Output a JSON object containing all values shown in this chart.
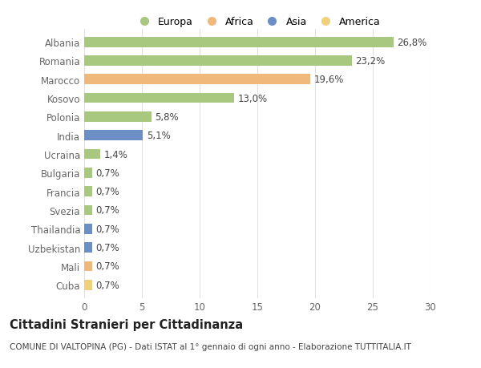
{
  "categories": [
    "Albania",
    "Romania",
    "Marocco",
    "Kosovo",
    "Polonia",
    "India",
    "Ucraina",
    "Bulgaria",
    "Francia",
    "Svezia",
    "Thailandia",
    "Uzbekistan",
    "Mali",
    "Cuba"
  ],
  "values": [
    26.8,
    23.2,
    19.6,
    13.0,
    5.8,
    5.1,
    1.4,
    0.7,
    0.7,
    0.7,
    0.7,
    0.7,
    0.7,
    0.7
  ],
  "labels": [
    "26,8%",
    "23,2%",
    "19,6%",
    "13,0%",
    "5,8%",
    "5,1%",
    "1,4%",
    "0,7%",
    "0,7%",
    "0,7%",
    "0,7%",
    "0,7%",
    "0,7%",
    "0,7%"
  ],
  "continents": [
    "Europa",
    "Europa",
    "Africa",
    "Europa",
    "Europa",
    "Asia",
    "Europa",
    "Europa",
    "Europa",
    "Europa",
    "Asia",
    "Asia",
    "Africa",
    "America"
  ],
  "continent_colors": {
    "Europa": "#a8c87f",
    "Africa": "#f0b87a",
    "Asia": "#6b8ec4",
    "America": "#f0d07a"
  },
  "legend_order": [
    "Europa",
    "Africa",
    "Asia",
    "America"
  ],
  "title": "Cittadini Stranieri per Cittadinanza",
  "subtitle": "COMUNE DI VALTOPINA (PG) - Dati ISTAT al 1° gennaio di ogni anno - Elaborazione TUTTITALIA.IT",
  "xlim": [
    0,
    30
  ],
  "xticks": [
    0,
    5,
    10,
    15,
    20,
    25,
    30
  ],
  "background_color": "#ffffff",
  "bar_height": 0.55,
  "grid_color": "#e0e0e0",
  "label_fontsize": 8.5,
  "tick_fontsize": 8.5,
  "title_fontsize": 10.5,
  "subtitle_fontsize": 7.5
}
